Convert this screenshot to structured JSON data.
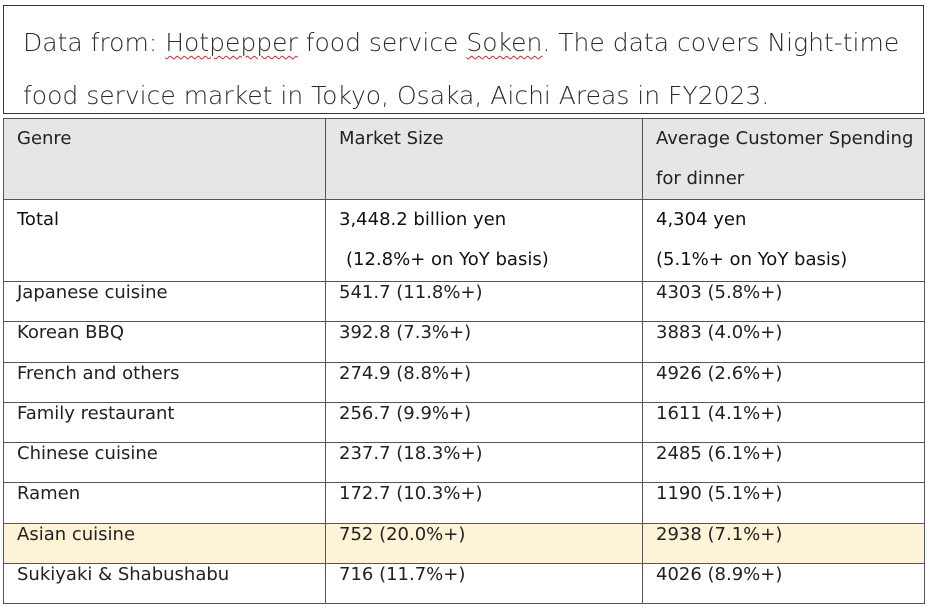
{
  "header": {
    "prefix": "Data from: ",
    "source_word1": "Hotpepper",
    "middle": " food service ",
    "source_word2": "Soken",
    "rest_line1": ". The data covers Night-time",
    "line2": "food service market in Tokyo, Osaka, Aichi Areas in FY2023."
  },
  "table": {
    "headers": {
      "genre": "Genre",
      "market_size": "Market Size",
      "spending_line1": "Average Customer Spending",
      "spending_line2": "for dinner"
    },
    "total": {
      "genre": "Total",
      "market_size_line1": "3,448.2 billion yen",
      "market_size_line2": "(12.8%+ on YoY basis)",
      "spending_line1": "4,304 yen",
      "spending_line2": "(5.1%+ on YoY basis)"
    },
    "rows": [
      {
        "genre": "Japanese cuisine",
        "market_size": "541.7 (11.8%+)",
        "spending": "4303 (5.8%+)"
      },
      {
        "genre": "Korean BBQ",
        "market_size": "392.8 (7.3%+)",
        "spending": "3883 (4.0%+)"
      },
      {
        "genre": "French and others",
        "market_size": "274.9 (8.8%+)",
        "spending": "4926 (2.6%+)"
      },
      {
        "genre": "Family restaurant",
        "market_size": "256.7 (9.9%+)",
        "spending": "1611 (4.1%+)"
      },
      {
        "genre": "Chinese cuisine",
        "market_size": "237.7 (18.3%+)",
        "spending": "2485 (6.1%+)"
      },
      {
        "genre": "Ramen",
        "market_size": "172.7 (10.3%+)",
        "spending": "1190 (5.1%+)"
      },
      {
        "genre": "Asian cuisine",
        "market_size": "752 (20.0%+)",
        "spending": "2938 (7.1%+)"
      },
      {
        "genre": "Sukiyaki & Shabushabu",
        "market_size": "716 (11.7%+)",
        "spending": "4026 (8.9%+)"
      }
    ],
    "highlight_color": "#fdf3d6"
  }
}
